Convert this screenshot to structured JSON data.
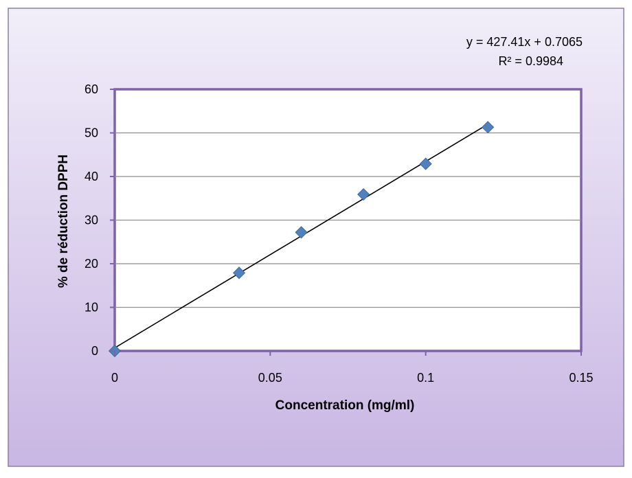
{
  "chart_data": {
    "type": "scatter",
    "title": "",
    "xlabel": "Concentration (mg/ml)",
    "ylabel": "% de réduction DPPH",
    "xlim": [
      0,
      0.15
    ],
    "ylim": [
      0,
      60
    ],
    "x_ticks": [
      "0",
      "0.05",
      "0.1",
      "0.15"
    ],
    "y_ticks": [
      "0",
      "10",
      "20",
      "30",
      "40",
      "50",
      "60"
    ],
    "x_tick_values": [
      0,
      0.05,
      0.1,
      0.15
    ],
    "y_tick_values": [
      0,
      10,
      20,
      30,
      40,
      50,
      60
    ],
    "grid": "horizontal",
    "series": [
      {
        "x": [
          0,
          0.04,
          0.06,
          0.08,
          0.1,
          0.12
        ],
        "y": [
          0,
          17.9,
          27.2,
          35.9,
          42.9,
          51.3
        ],
        "color": "#4F81BD",
        "marker": "diamond"
      }
    ],
    "trendline": {
      "type": "linear",
      "slope": 427.41,
      "intercept": 0.7065,
      "x_range": [
        0,
        0.12
      ],
      "color": "#000000",
      "equation": "y = 427.41x + 0.7065",
      "r_squared": "R² = 0.9984"
    }
  }
}
